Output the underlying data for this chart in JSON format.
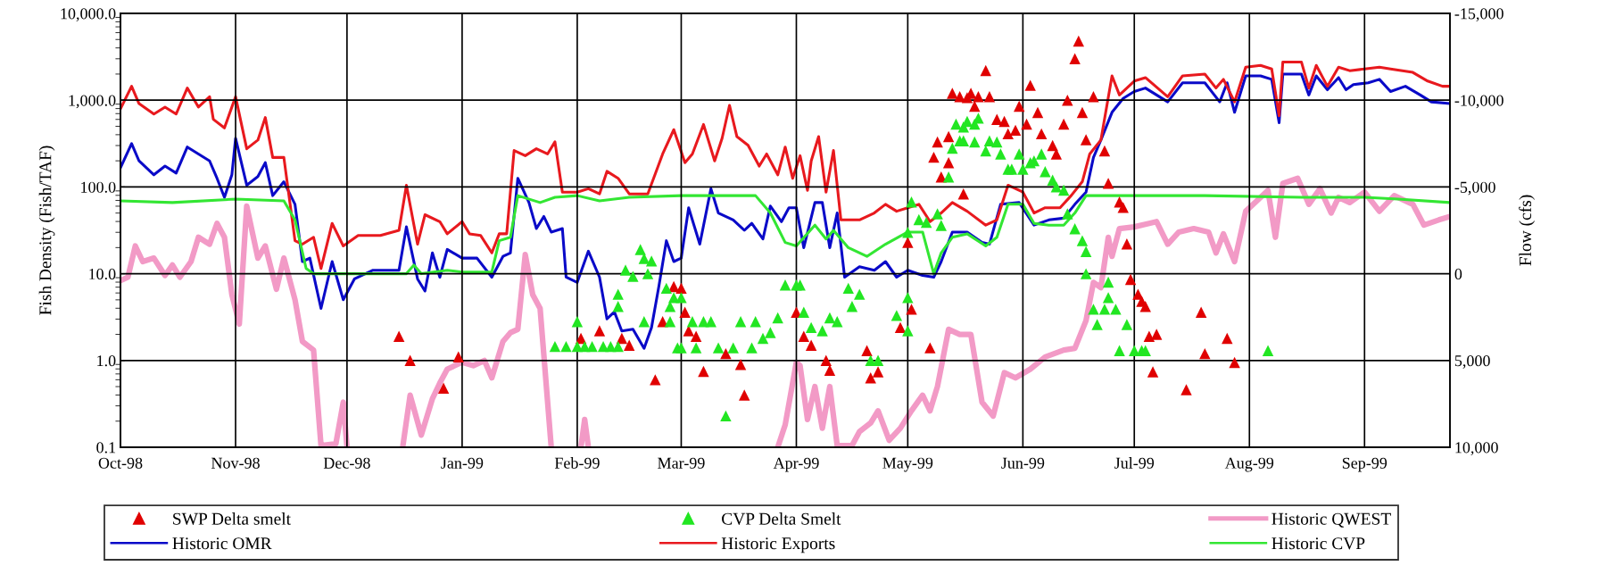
{
  "chart_data": {
    "type": "line",
    "ylabel": "Fish Density (Fish/TAF)",
    "y2label": "Flow (cfs)",
    "xlim": [
      "1998-10-01",
      "1999-09-24"
    ],
    "xticks": [
      {
        "value": "1998-10-01",
        "label": "Oct-98"
      },
      {
        "value": "1998-11-01",
        "label": "Nov-98"
      },
      {
        "value": "1998-12-01",
        "label": "Dec-98"
      },
      {
        "value": "1999-01-01",
        "label": "Jan-99"
      },
      {
        "value": "1999-02-01",
        "label": "Feb-99"
      },
      {
        "value": "1999-03-01",
        "label": "Mar-99"
      },
      {
        "value": "1999-04-01",
        "label": "Apr-99"
      },
      {
        "value": "1999-05-01",
        "label": "May-99"
      },
      {
        "value": "1999-06-01",
        "label": "Jun-99"
      },
      {
        "value": "1999-07-01",
        "label": "Jul-99"
      },
      {
        "value": "1999-08-01",
        "label": "Aug-99"
      },
      {
        "value": "1999-09-01",
        "label": "Sep-99"
      }
    ],
    "log": "y",
    "ylim": [
      0.1,
      10000
    ],
    "yticks": [
      {
        "value": 0.1,
        "label": "0.1"
      },
      {
        "value": 1,
        "label": "1.0"
      },
      {
        "value": 10,
        "label": "10.0"
      },
      {
        "value": 100,
        "label": "100.0"
      },
      {
        "value": 1000,
        "label": "1,000.0"
      },
      {
        "value": 10000,
        "label": "10,000.0"
      }
    ],
    "y2lim": [
      10000,
      -15000
    ],
    "y2ticks": [
      {
        "value": 10000,
        "label": "10,000"
      },
      {
        "value": 5000,
        "label": "5,000"
      },
      0,
      {
        "value": -5000,
        "label": "-5,000"
      },
      {
        "value": -10000,
        "label": "-10,000"
      },
      {
        "value": -15000,
        "label": "-15,000"
      }
    ],
    "grid": true,
    "legend": "bottom",
    "series": [
      {
        "name": "SWP Delta smelt",
        "type": "scatter",
        "marker": "triangle",
        "color": "#e00000",
        "x": [
          "1998-12-15",
          "1998-12-18",
          "1998-12-27",
          "1998-12-31",
          "1999-02-02",
          "1999-02-07",
          "1999-02-13",
          "1999-02-15",
          "1999-02-22",
          "1999-02-24",
          "1999-02-27",
          "1999-03-01",
          "1999-03-02",
          "1999-03-03",
          "1999-03-05",
          "1999-03-07",
          "1999-03-13",
          "1999-03-17",
          "1999-03-18",
          "1999-04-01",
          "1999-04-03",
          "1999-04-05",
          "1999-04-09",
          "1999-04-10",
          "1999-04-20",
          "1999-04-21",
          "1999-04-23",
          "1999-04-29",
          "1999-05-01",
          "1999-05-02",
          "1999-05-07",
          "1999-05-08",
          "1999-05-09",
          "1999-05-10",
          "1999-05-12",
          "1999-05-12",
          "1999-05-13",
          "1999-05-15",
          "1999-05-16",
          "1999-05-17",
          "1999-05-18",
          "1999-05-19",
          "1999-05-20",
          "1999-05-22",
          "1999-05-23",
          "1999-05-25",
          "1999-05-27",
          "1999-05-28",
          "1999-05-30",
          "1999-05-31",
          "1999-06-02",
          "1999-06-03",
          "1999-06-05",
          "1999-06-06",
          "1999-06-09",
          "1999-06-10",
          "1999-06-12",
          "1999-06-13",
          "1999-06-15",
          "1999-06-16",
          "1999-06-17",
          "1999-06-18",
          "1999-06-20",
          "1999-06-23",
          "1999-06-24",
          "1999-06-27",
          "1999-06-28",
          "1999-06-29",
          "1999-06-30",
          "1999-07-02",
          "1999-07-03",
          "1999-07-04",
          "1999-07-05",
          "1999-07-06",
          "1999-07-07",
          "1999-07-15",
          "1999-07-19",
          "1999-07-20",
          "1999-07-26",
          "1999-07-28"
        ],
        "values": [
          1.9,
          1.0,
          0.48,
          1.1,
          1.8,
          2.2,
          1.8,
          1.5,
          0.6,
          2.8,
          7.1,
          6.8,
          3.6,
          2.2,
          1.9,
          0.75,
          1.2,
          0.9,
          0.4,
          3.6,
          1.9,
          1.5,
          1.0,
          0.77,
          1.3,
          0.63,
          0.74,
          2.4,
          23,
          3.9,
          1.4,
          220,
          330,
          130,
          190,
          380,
          1200,
          1100,
          83,
          1070,
          1200,
          850,
          1100,
          2200,
          1100,
          600,
          570,
          410,
          450,
          850,
          530,
          1480,
          720,
          410,
          300,
          240,
          530,
          1000,
          3000,
          4800,
          720,
          350,
          1100,
          260,
          110,
          67,
          58,
          22,
          8.6,
          5.8,
          4.8,
          4.2,
          1.9,
          0.74,
          2.0,
          0.46,
          3.6,
          1.2,
          1.8,
          0.95
        ]
      },
      {
        "name": "CVP Delta Smelt",
        "type": "scatter",
        "marker": "triangle",
        "color": "#22e622",
        "x": [
          "1999-01-26",
          "1999-01-29",
          "1999-02-01",
          "1999-02-01",
          "1999-02-03",
          "1999-02-05",
          "1999-02-08",
          "1999-02-10",
          "1999-02-12",
          "1999-02-12",
          "1999-02-12",
          "1999-02-14",
          "1999-02-16",
          "1999-02-18",
          "1999-02-19",
          "1999-02-19",
          "1999-02-20",
          "1999-02-21",
          "1999-02-25",
          "1999-02-26",
          "1999-02-26",
          "1999-02-27",
          "1999-02-28",
          "1999-03-01",
          "1999-03-01",
          "1999-03-04",
          "1999-03-05",
          "1999-03-07",
          "1999-03-09",
          "1999-03-11",
          "1999-03-13",
          "1999-03-15",
          "1999-03-17",
          "1999-03-20",
          "1999-03-21",
          "1999-03-23",
          "1999-03-25",
          "1999-03-27",
          "1999-03-29",
          "1999-04-01",
          "1999-04-02",
          "1999-04-03",
          "1999-04-05",
          "1999-04-08",
          "1999-04-10",
          "1999-04-12",
          "1999-04-15",
          "1999-04-16",
          "1999-04-18",
          "1999-04-21",
          "1999-04-23",
          "1999-04-28",
          "1999-05-01",
          "1999-05-01",
          "1999-05-01",
          "1999-05-02",
          "1999-05-04",
          "1999-05-06",
          "1999-05-09",
          "1999-05-10",
          "1999-05-12",
          "1999-05-13",
          "1999-05-14",
          "1999-05-15",
          "1999-05-16",
          "1999-05-16",
          "1999-05-17",
          "1999-05-19",
          "1999-05-19",
          "1999-05-20",
          "1999-05-22",
          "1999-05-23",
          "1999-05-25",
          "1999-05-26",
          "1999-05-28",
          "1999-05-29",
          "1999-05-31",
          "1999-06-01",
          "1999-06-03",
          "1999-06-04",
          "1999-06-06",
          "1999-06-07",
          "1999-06-09",
          "1999-06-10",
          "1999-06-12",
          "1999-06-13",
          "1999-06-15",
          "1999-06-17",
          "1999-06-18",
          "1999-06-18",
          "1999-06-20",
          "1999-06-21",
          "1999-06-23",
          "1999-06-24",
          "1999-06-24",
          "1999-06-26",
          "1999-06-27",
          "1999-06-29",
          "1999-07-01",
          "1999-07-03",
          "1999-07-04",
          "1999-08-06"
        ],
        "values": [
          1.45,
          1.45,
          1.45,
          2.8,
          1.45,
          1.45,
          1.45,
          1.45,
          1.45,
          5.8,
          4.2,
          11,
          9.3,
          19,
          15,
          2.8,
          10,
          14,
          6.8,
          2.8,
          4.2,
          5.3,
          1.4,
          5.3,
          1.4,
          2.8,
          1.4,
          2.8,
          2.8,
          1.4,
          0.23,
          1.4,
          2.8,
          1.4,
          2.8,
          1.8,
          2.1,
          3.1,
          7.4,
          7.4,
          7.4,
          3.6,
          2.4,
          2.2,
          3.1,
          2.8,
          6.8,
          4.2,
          5.8,
          1.0,
          1.0,
          3.3,
          5.3,
          2.2,
          30,
          67,
          42,
          39,
          49,
          36,
          130,
          280,
          530,
          340,
          490,
          340,
          570,
          530,
          330,
          620,
          260,
          340,
          330,
          240,
          160,
          160,
          240,
          160,
          190,
          200,
          240,
          150,
          120,
          100,
          92,
          49,
          33,
          24,
          18,
          10,
          3.9,
          2.6,
          3.9,
          5.3,
          8,
          3.9,
          1.3,
          2.6,
          1.3,
          1.3,
          1.3,
          1.3
        ]
      },
      {
        "name": "Historic QWEST",
        "axis": "y2",
        "color": "#f29ac6",
        "x": [
          "1998-10-01",
          "1998-10-03",
          "1998-10-05",
          "1998-10-07",
          "1998-10-10",
          "1998-10-13",
          "1998-10-15",
          "1998-10-17",
          "1998-10-20",
          "1998-10-22",
          "1998-10-25",
          "1998-10-27",
          "1998-10-29",
          "1998-10-31",
          "1998-11-02",
          "1998-11-03",
          "1998-11-04",
          "1998-11-07",
          "1998-11-09",
          "1998-11-12",
          "1998-11-14",
          "1998-11-17",
          "1998-11-19",
          "1998-11-22",
          "1998-11-24",
          "1998-11-28",
          "1998-11-30",
          "1998-12-01",
          "1998-12-08",
          "1998-12-16",
          "1998-12-18",
          "1998-12-21",
          "1998-12-24",
          "1998-12-26",
          "1998-12-28",
          "1999-01-01",
          "1999-01-04",
          "1999-01-07",
          "1999-01-09",
          "1999-01-12",
          "1999-01-14",
          "1999-01-16",
          "1999-01-18",
          "1999-01-20",
          "1999-01-22",
          "1999-01-25",
          "1999-01-28",
          "1999-02-02",
          "1999-02-03",
          "1999-02-04",
          "1999-03-10",
          "1999-03-27",
          "1999-03-29",
          "1999-04-01",
          "1999-04-02",
          "1999-04-04",
          "1999-04-06",
          "1999-04-08",
          "1999-04-10",
          "1999-04-12",
          "1999-04-16",
          "1999-04-18",
          "1999-04-21",
          "1999-04-23",
          "1999-04-26",
          "1999-04-29",
          "1999-05-02",
          "1999-05-05",
          "1999-05-07",
          "1999-05-09",
          "1999-05-12",
          "1999-05-15",
          "1999-05-18",
          "1999-05-21",
          "1999-05-24",
          "1999-05-27",
          "1999-05-30",
          "1999-06-03",
          "1999-06-07",
          "1999-06-12",
          "1999-06-15",
          "1999-06-18",
          "1999-06-20",
          "1999-06-22",
          "1999-06-24",
          "1999-06-25",
          "1999-06-27",
          "1999-07-01",
          "1999-07-05",
          "1999-07-07",
          "1999-07-10",
          "1999-07-13",
          "1999-07-17",
          "1999-07-21",
          "1999-07-23",
          "1999-07-25",
          "1999-07-28",
          "1999-07-31",
          "1999-08-03",
          "1999-08-06",
          "1999-08-08",
          "1999-08-10",
          "1999-08-14",
          "1999-08-17",
          "1999-08-20",
          "1999-08-23",
          "1999-08-25",
          "1999-08-28",
          "1999-09-01",
          "1999-09-05",
          "1999-09-09",
          "1999-09-14",
          "1999-09-17",
          "1999-09-21",
          "1999-09-24"
        ],
        "values": [
          400,
          200,
          -1600,
          -700,
          -900,
          100,
          -500,
          200,
          -700,
          -2100,
          -1700,
          -2900,
          -2100,
          1200,
          2900,
          -500,
          -3900,
          -900,
          -1600,
          900,
          -900,
          1500,
          3900,
          4400,
          9900,
          9800,
          7400,
          10000,
          null,
          10000,
          7000,
          9300,
          7200,
          6300,
          5500,
          5100,
          5300,
          5000,
          6000,
          3900,
          3400,
          3200,
          -1100,
          1200,
          2000,
          10000,
          null,
          10000,
          8400,
          10000,
          null,
          10000,
          8700,
          5100,
          5300,
          8400,
          6500,
          8900,
          6500,
          9900,
          9900,
          9100,
          8600,
          7900,
          9600,
          8900,
          7900,
          7000,
          7900,
          6500,
          3200,
          3500,
          3500,
          7400,
          8200,
          5700,
          6000,
          5500,
          4800,
          4400,
          4300,
          2700,
          500,
          800,
          -2100,
          -1000,
          -2600,
          -2700,
          -2900,
          -3000,
          -1700,
          -2400,
          -2600,
          -2400,
          -1200,
          -2300,
          -700,
          -3600,
          -4200,
          -4800,
          -2100,
          -5200,
          -5500,
          -4000,
          -4900,
          -3500,
          -4400,
          -4100,
          -4700,
          -3600,
          -4500,
          -4000,
          -2800,
          -3100,
          -3300
        ]
      },
      {
        "name": "Historic OMR",
        "axis": "y2",
        "color": "#0a0ac8",
        "x": [
          "1998-10-01",
          "1998-10-04",
          "1998-10-06",
          "1998-10-10",
          "1998-10-13",
          "1998-10-16",
          "1998-10-19",
          "1998-10-22",
          "1998-10-25",
          "1998-10-27",
          "1998-10-29",
          "1998-10-31",
          "1998-11-01",
          "1998-11-04",
          "1998-11-07",
          "1998-11-09",
          "1998-11-11",
          "1998-11-14",
          "1998-11-17",
          "1998-11-19",
          "1998-11-21",
          "1998-11-24",
          "1998-11-27",
          "1998-11-30",
          "1998-12-03",
          "1998-12-08",
          "1998-12-15",
          "1998-12-17",
          "1998-12-20",
          "1998-12-22",
          "1998-12-24",
          "1998-12-26",
          "1998-12-28",
          "1999-01-01",
          "1999-01-05",
          "1999-01-09",
          "1999-01-12",
          "1999-01-14",
          "1999-01-16",
          "1999-01-19",
          "1999-01-21",
          "1999-01-23",
          "1999-01-25",
          "1999-01-28",
          "1999-01-29",
          "1999-02-01",
          "1999-02-04",
          "1999-02-07",
          "1999-02-09",
          "1999-02-11",
          "1999-02-13",
          "1999-02-16",
          "1999-02-19",
          "1999-02-21",
          "1999-02-23",
          "1999-02-25",
          "1999-02-27",
          "1999-03-01",
          "1999-03-03",
          "1999-03-06",
          "1999-03-09",
          "1999-03-11",
          "1999-03-15",
          "1999-03-18",
          "1999-03-20",
          "1999-03-23",
          "1999-03-25",
          "1999-03-28",
          "1999-03-30",
          "1999-04-01",
          "1999-04-03",
          "1999-04-06",
          "1999-04-08",
          "1999-04-10",
          "1999-04-12",
          "1999-04-14",
          "1999-04-18",
          "1999-04-22",
          "1999-04-25",
          "1999-04-28",
          "1999-05-01",
          "1999-05-05",
          "1999-05-08",
          "1999-05-10",
          "1999-05-13",
          "1999-05-17",
          "1999-05-21",
          "1999-05-23",
          "1999-05-26",
          "1999-05-31",
          "1999-06-04",
          "1999-06-08",
          "1999-06-12",
          "1999-06-15",
          "1999-06-18",
          "1999-06-20",
          "1999-06-22",
          "1999-06-25",
          "1999-06-28",
          "1999-07-01",
          "1999-07-04",
          "1999-07-10",
          "1999-07-14",
          "1999-07-20",
          "1999-07-24",
          "1999-07-26",
          "1999-07-28",
          "1999-07-31",
          "1999-08-04",
          "1999-08-07",
          "1999-08-09",
          "1999-08-10",
          "1999-08-15",
          "1999-08-17",
          "1999-08-19",
          "1999-08-22",
          "1999-08-25",
          "1999-08-27",
          "1999-08-29",
          "1999-09-02",
          "1999-09-05",
          "1999-09-08",
          "1999-09-12",
          "1999-09-16",
          "1999-09-19",
          "1999-09-24"
        ],
        "values": [
          -6100,
          -7500,
          -6500,
          -5700,
          -6200,
          -5800,
          -7300,
          -6900,
          -6500,
          -5500,
          -4400,
          -5700,
          -7800,
          -5100,
          -5600,
          -6400,
          -4500,
          -5300,
          -4000,
          -700,
          -900,
          2000,
          -700,
          1500,
          300,
          -200,
          -200,
          -2700,
          300,
          1000,
          -1200,
          200,
          -1400,
          -900,
          -900,
          200,
          -1000,
          -1200,
          -5500,
          -4100,
          -2600,
          -3300,
          -2400,
          -2600,
          200,
          500,
          -1300,
          200,
          2600,
          2200,
          3300,
          3200,
          4300,
          3100,
          700,
          -1900,
          -700,
          -900,
          -3800,
          -1700,
          -4900,
          -3500,
          -3100,
          -2500,
          -2900,
          -2000,
          -3900,
          -3000,
          -3800,
          -3800,
          -1500,
          -4100,
          -4100,
          -1500,
          -3500,
          200,
          -400,
          -200,
          -700,
          200,
          -200,
          100,
          200,
          -700,
          -2400,
          -2400,
          -1800,
          -1700,
          -4000,
          -4100,
          -2800,
          -3100,
          -3200,
          -4000,
          -4700,
          -6700,
          -7700,
          -9300,
          -10100,
          -10500,
          -10700,
          -9900,
          -11000,
          -11000,
          -9900,
          -11000,
          -9300,
          -11400,
          -11400,
          -11200,
          -8700,
          -11500,
          -11500,
          -10300,
          -11400,
          -10600,
          -11300,
          -10600,
          -10900,
          -11000,
          -11200,
          -10500,
          -10800,
          -10300,
          -9900,
          -9800
        ]
      },
      {
        "name": "Historic Exports",
        "axis": "y2",
        "color": "#e8191e",
        "x": [
          "1998-10-01",
          "1998-10-04",
          "1998-10-06",
          "1998-10-10",
          "1998-10-13",
          "1998-10-16",
          "1998-10-19",
          "1998-10-22",
          "1998-10-25",
          "1998-10-26",
          "1998-10-29",
          "1998-11-01",
          "1998-11-04",
          "1998-11-07",
          "1998-11-09",
          "1998-11-11",
          "1998-11-14",
          "1998-11-17",
          "1998-11-19",
          "1998-11-22",
          "1998-11-24",
          "1998-11-27",
          "1998-11-30",
          "1998-12-04",
          "1998-12-10",
          "1998-12-15",
          "1998-12-17",
          "1998-12-20",
          "1998-12-22",
          "1998-12-26",
          "1998-12-28",
          "1999-01-01",
          "1999-01-03",
          "1999-01-06",
          "1999-01-09",
          "1999-01-11",
          "1999-01-13",
          "1999-01-15",
          "1999-01-18",
          "1999-01-21",
          "1999-01-24",
          "1999-01-26",
          "1999-01-28",
          "1999-02-01",
          "1999-02-04",
          "1999-02-07",
          "1999-02-09",
          "1999-02-12",
          "1999-02-15",
          "1999-02-20",
          "1999-02-24",
          "1999-02-27",
          "1999-03-02",
          "1999-03-04",
          "1999-03-07",
          "1999-03-10",
          "1999-03-12",
          "1999-03-14",
          "1999-03-16",
          "1999-03-19",
          "1999-03-22",
          "1999-03-24",
          "1999-03-27",
          "1999-03-29",
          "1999-03-31",
          "1999-04-02",
          "1999-04-04",
          "1999-04-05",
          "1999-04-07",
          "1999-04-09",
          "1999-04-11",
          "1999-04-13",
          "1999-04-18",
          "1999-04-22",
          "1999-04-25",
          "1999-04-28",
          "1999-05-01",
          "1999-05-04",
          "1999-05-07",
          "1999-05-10",
          "1999-05-13",
          "1999-05-17",
          "1999-05-22",
          "1999-05-25",
          "1999-05-28",
          "1999-06-01",
          "1999-06-04",
          "1999-06-07",
          "1999-06-11",
          "1999-06-14",
          "1999-06-17",
          "1999-06-19",
          "1999-06-22",
          "1999-06-25",
          "1999-06-27",
          "1999-07-01",
          "1999-07-04",
          "1999-07-10",
          "1999-07-14",
          "1999-07-20",
          "1999-07-23",
          "1999-07-25",
          "1999-07-28",
          "1999-07-31",
          "1999-08-04",
          "1999-08-07",
          "1999-08-09",
          "1999-08-10",
          "1999-08-15",
          "1999-08-17",
          "1999-08-19",
          "1999-08-22",
          "1999-08-25",
          "1999-08-28",
          "1999-09-01",
          "1999-09-05",
          "1999-09-08",
          "1999-09-14",
          "1999-09-18",
          "1999-09-22",
          "1999-09-24"
        ],
        "values": [
          -9500,
          -10800,
          -9800,
          -9200,
          -9600,
          -9200,
          -10700,
          -9600,
          -10200,
          -8900,
          -8400,
          -10200,
          -7200,
          -7700,
          -9000,
          -6700,
          -6700,
          -1900,
          -1700,
          -2100,
          -300,
          -2900,
          -1600,
          -2200,
          -2200,
          -2500,
          -5100,
          -1700,
          -3400,
          -3000,
          -2300,
          -3000,
          -2300,
          -2200,
          -1200,
          -2300,
          -2300,
          -7100,
          -6800,
          -7200,
          -6900,
          -7600,
          -4700,
          -4700,
          -4900,
          -4600,
          -5900,
          -5500,
          -4600,
          -4600,
          -6900,
          -8300,
          -6400,
          -6900,
          -8600,
          -6500,
          -7800,
          -9700,
          -7900,
          -7400,
          -6200,
          -6900,
          -5700,
          -7300,
          -5500,
          -6800,
          -4800,
          -6500,
          -7900,
          -4700,
          -7100,
          -3100,
          -3100,
          -3500,
          -4000,
          -3600,
          -3800,
          -4000,
          -3000,
          -3500,
          -4100,
          -3600,
          -2800,
          -3100,
          -5100,
          -4700,
          -3500,
          -3800,
          -3800,
          -4500,
          -5300,
          -6900,
          -7700,
          -11400,
          -10300,
          -11100,
          -11300,
          -10200,
          -11400,
          -11500,
          -10700,
          -11200,
          -9900,
          -11900,
          -12000,
          -11800,
          -9100,
          -12200,
          -12200,
          -10700,
          -12000,
          -10800,
          -11900,
          -11700,
          -11800,
          -11900,
          -11800,
          -11600,
          -11100,
          -10800,
          -10800
        ]
      },
      {
        "name": "Historic CVP",
        "axis": "y2",
        "color": "#33e633",
        "x": [
          "1998-10-01",
          "1998-10-15",
          "1998-11-01",
          "1998-11-14",
          "1998-11-17",
          "1998-11-20",
          "1998-11-22",
          "1998-12-17",
          "1998-12-19",
          "1998-12-21",
          "1998-12-28",
          "1999-01-01",
          "1999-01-09",
          "1999-01-11",
          "1999-01-14",
          "1999-01-16",
          "1999-01-22",
          "1999-01-26",
          "1999-02-01",
          "1999-02-07",
          "1999-02-15",
          "1999-03-01",
          "1999-03-15",
          "1999-03-21",
          "1999-03-25",
          "1999-03-29",
          "1999-04-01",
          "1999-04-06",
          "1999-04-09",
          "1999-04-11",
          "1999-04-15",
          "1999-04-20",
          "1999-04-25",
          "1999-05-01",
          "1999-05-05",
          "1999-05-08",
          "1999-05-10",
          "1999-05-13",
          "1999-05-17",
          "1999-05-22",
          "1999-05-25",
          "1999-05-28",
          "1999-06-01",
          "1999-06-04",
          "1999-06-08",
          "1999-06-12",
          "1999-06-15",
          "1999-06-18",
          "1999-07-01",
          "1999-07-20",
          "1999-08-15",
          "1999-09-01",
          "1999-09-10",
          "1999-09-24"
        ],
        "values": [
          -4200,
          -4100,
          -4300,
          -4200,
          -3100,
          -300,
          0,
          0,
          -500,
          0,
          -200,
          -100,
          -100,
          -1900,
          -2100,
          -4500,
          -4100,
          -4400,
          -4500,
          -4200,
          -4400,
          -4500,
          -4500,
          -4500,
          -3500,
          -1800,
          -1600,
          -2800,
          -2000,
          -2500,
          -1500,
          -1000,
          -1700,
          -2400,
          -2400,
          0,
          -1200,
          -2100,
          -2300,
          -1600,
          -2100,
          -4000,
          -4000,
          -2900,
          -2800,
          -2800,
          -3500,
          -4500,
          -4500,
          -4500,
          -4400,
          -4400,
          -4300,
          -4100
        ]
      }
    ]
  }
}
